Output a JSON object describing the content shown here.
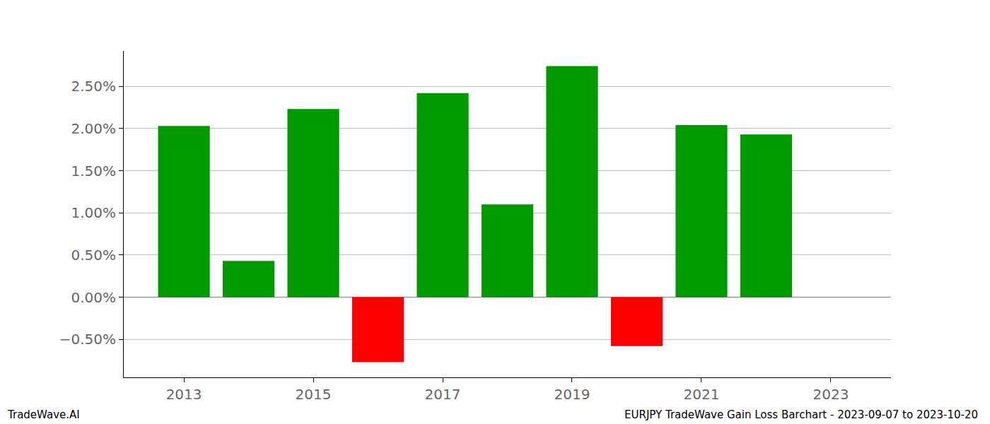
{
  "chart_data": {
    "type": "bar",
    "x": [
      2013,
      2014,
      2015,
      2016,
      2017,
      2018,
      2019,
      2020,
      2021,
      2022
    ],
    "values": [
      2.03,
      0.43,
      2.23,
      -0.77,
      2.42,
      1.1,
      2.74,
      -0.58,
      2.04,
      1.93
    ],
    "colors": [
      "#009900",
      "#009900",
      "#009900",
      "#ff0000",
      "#009900",
      "#009900",
      "#009900",
      "#ff0000",
      "#009900",
      "#009900"
    ],
    "xlim": [
      2012.07,
      2023.93
    ],
    "xticks": [
      2013,
      2015,
      2017,
      2019,
      2021,
      2023
    ],
    "ylim": [
      -0.95,
      2.92
    ],
    "yticks": [
      {
        "value": -0.5,
        "label": "−0.50%"
      },
      {
        "value": 0,
        "label": "0.00%"
      },
      {
        "value": 0.5,
        "label": "0.50%"
      },
      {
        "value": 1,
        "label": "1.00%"
      },
      {
        "value": 1.5,
        "label": "1.50%"
      },
      {
        "value": 2,
        "label": "2.00%"
      },
      {
        "value": 2.5,
        "label": "2.50%"
      }
    ],
    "grid": true,
    "annotations": [
      "TradeWave.AI",
      "EURJPY TradeWave Gain Loss Barchart - 2023-09-07 to 2023-10-20"
    ]
  }
}
